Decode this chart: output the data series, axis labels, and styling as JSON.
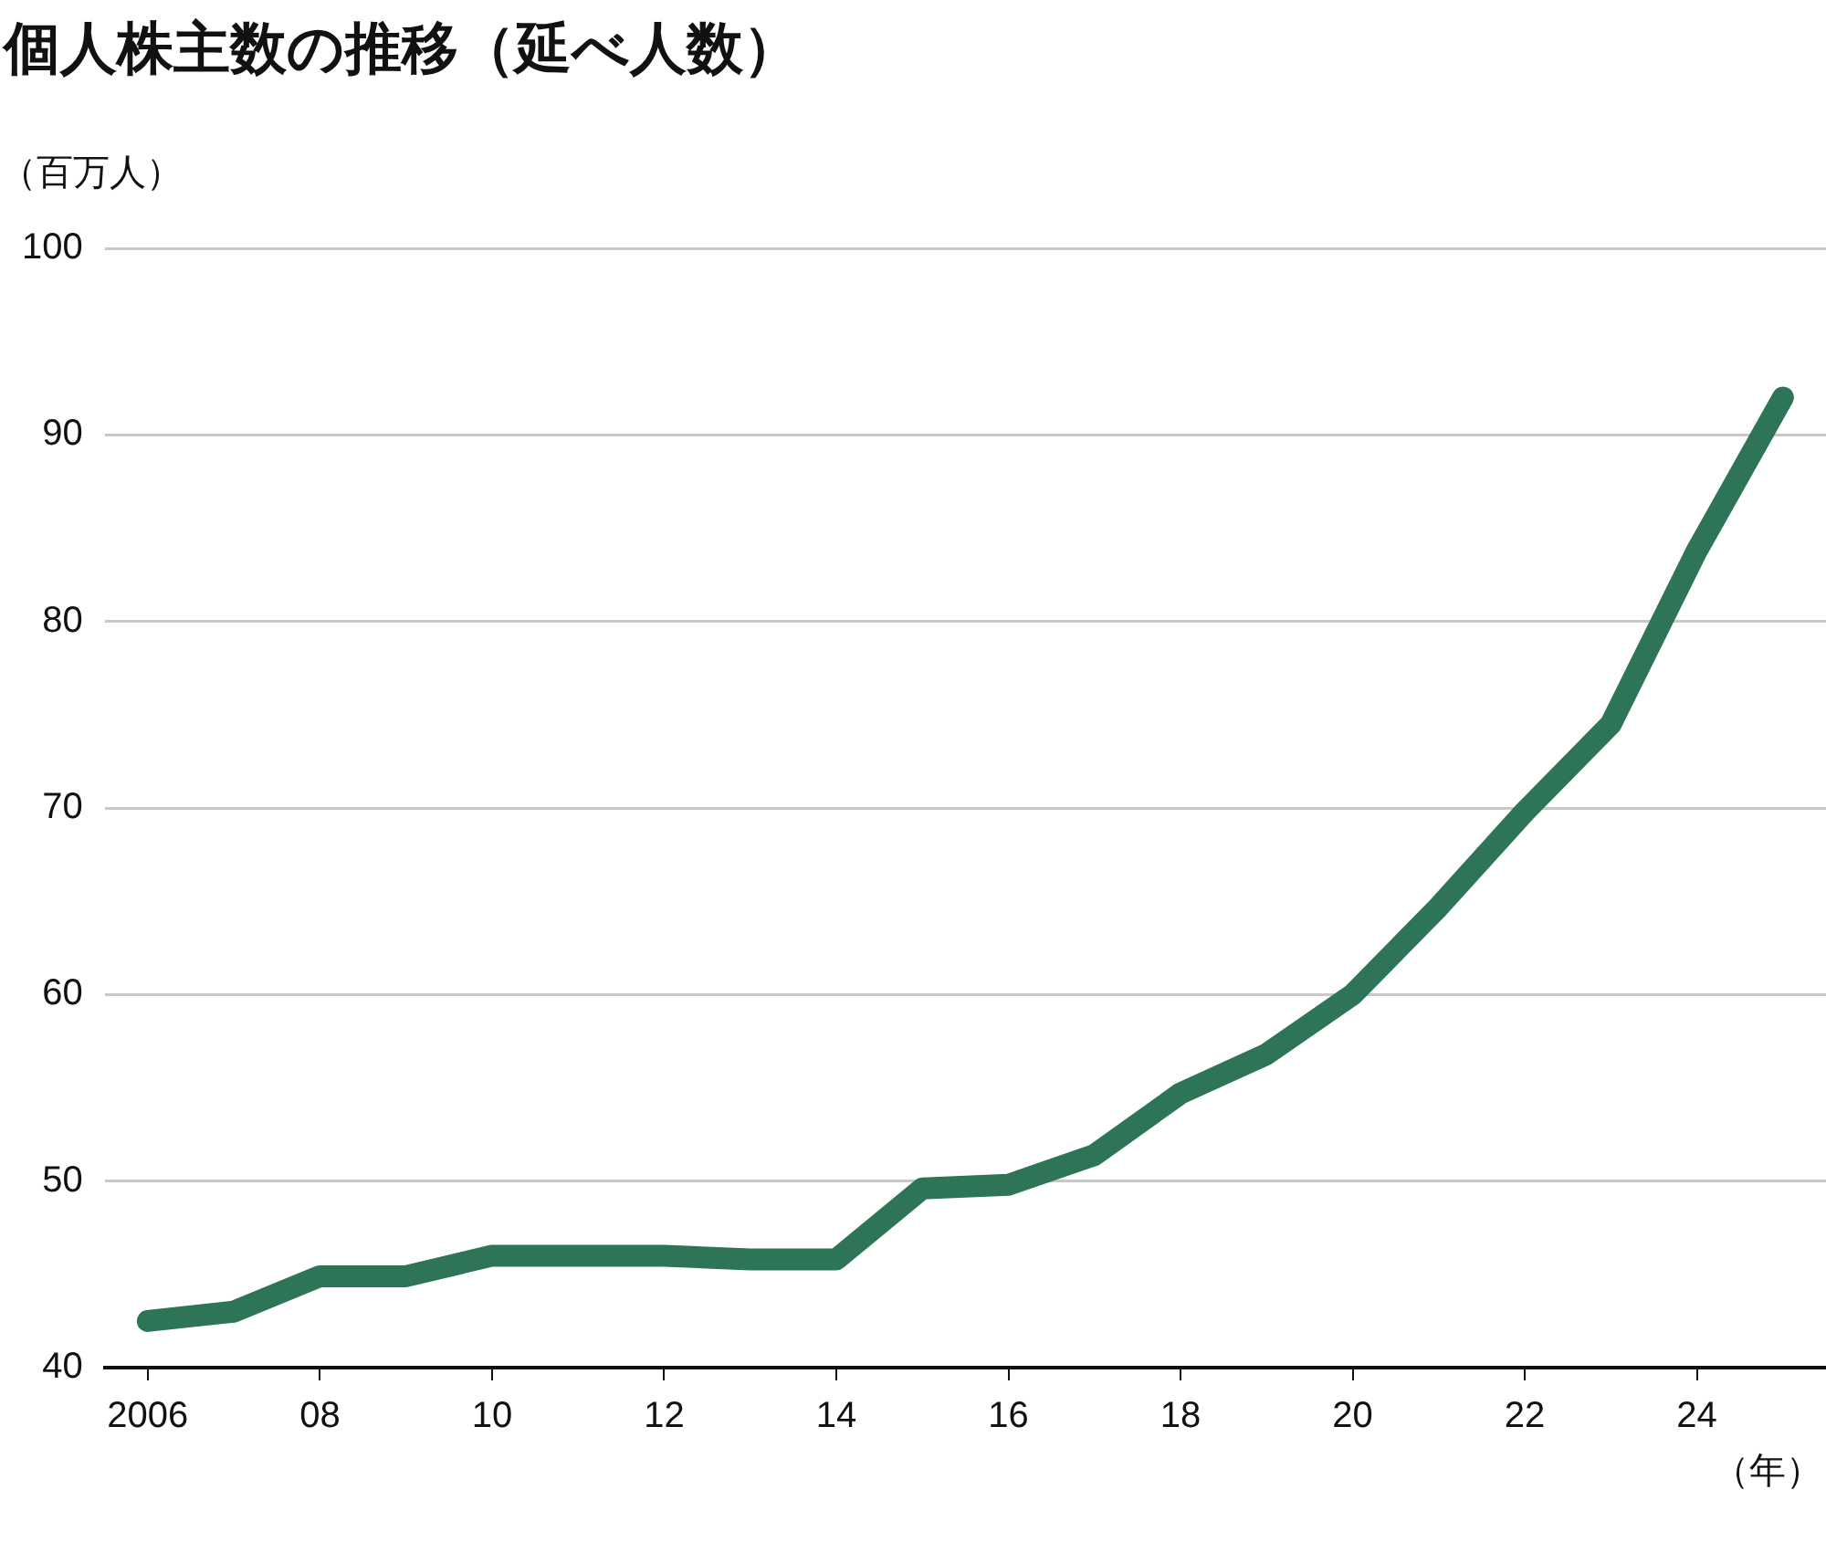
{
  "chart_data": {
    "type": "line",
    "title": "個人株主数の推移（延べ人数）",
    "ylabel": "（百万人）",
    "xlabel": "（年）",
    "x": [
      2006,
      2007,
      2008,
      2009,
      2010,
      2011,
      2012,
      2013,
      2014,
      2015,
      2016,
      2017,
      2018,
      2019,
      2020,
      2021,
      2022,
      2023,
      2024,
      2025
    ],
    "series": [
      {
        "color": "#2e7558",
        "values": [
          42.5,
          43.0,
          44.9,
          44.9,
          46.0,
          46.0,
          46.0,
          45.8,
          45.8,
          49.6,
          49.8,
          51.4,
          54.7,
          56.8,
          60.0,
          64.7,
          69.8,
          74.5,
          83.8,
          92.0
        ]
      }
    ],
    "xlim": [
      2005.5,
      2025.5
    ],
    "xticks": [
      2006,
      {
        "value": 2008,
        "label": "08"
      },
      {
        "value": 2010,
        "label": "10"
      },
      {
        "value": 2012,
        "label": "12"
      },
      {
        "value": 2014,
        "label": "14"
      },
      {
        "value": 2016,
        "label": "16"
      },
      {
        "value": 2018,
        "label": "18"
      },
      {
        "value": 2020,
        "label": "20"
      },
      {
        "value": 2022,
        "label": "22"
      },
      {
        "value": 2024,
        "label": "24"
      }
    ],
    "ylim": [
      40,
      100
    ],
    "yticks": [
      40,
      50,
      60,
      70,
      80,
      90,
      100
    ],
    "grid": "y",
    "line_style": "solid",
    "marker": "none"
  }
}
